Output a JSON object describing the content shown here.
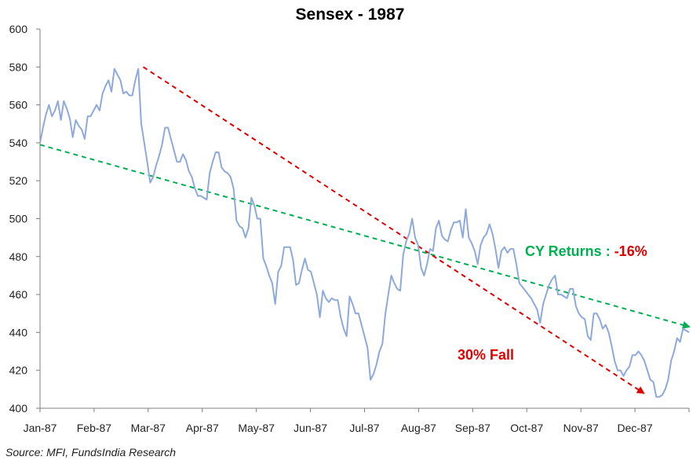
{
  "chart_data": {
    "type": "line",
    "title": "Sensex - 1987",
    "xlabel": "",
    "ylabel": "",
    "ylim": [
      400,
      600
    ],
    "yticks": [
      400,
      420,
      440,
      460,
      480,
      500,
      520,
      540,
      560,
      580,
      600
    ],
    "x_tick_labels": [
      "Jan-87",
      "Feb-87",
      "Mar-87",
      "Apr-87",
      "May-87",
      "Jun-87",
      "Jul-87",
      "Aug-87",
      "Sep-87",
      "Oct-87",
      "Nov-87",
      "Dec-87"
    ],
    "grid": false,
    "line_color": "#8EA9DB",
    "series": [
      {
        "values": [
          540,
          548,
          555,
          560,
          554,
          557,
          562,
          552,
          562,
          558,
          553,
          543,
          552,
          549,
          547,
          542,
          554,
          554,
          557,
          560,
          557,
          566,
          570,
          573,
          567,
          579,
          576,
          573,
          566,
          567,
          565,
          565,
          573,
          579,
          550,
          540,
          530,
          519,
          522,
          528,
          533,
          539,
          548,
          548,
          542,
          536,
          530,
          530,
          534,
          531,
          525,
          522,
          516,
          512,
          512,
          511,
          510,
          524,
          530,
          535,
          535,
          527,
          525,
          524,
          522,
          516,
          499,
          496,
          495,
          490,
          495,
          511,
          507,
          500,
          500,
          479,
          475,
          470,
          466,
          455,
          472,
          475,
          485,
          485,
          485,
          478,
          465,
          466,
          473,
          479,
          473,
          472,
          466,
          460,
          448,
          462,
          458,
          456,
          458,
          457,
          457,
          448,
          442,
          438,
          459,
          455,
          450,
          450,
          444,
          438,
          432,
          415,
          418,
          423,
          430,
          434,
          450,
          460,
          470,
          466,
          463,
          462,
          481,
          488,
          492,
          500,
          490,
          486,
          474,
          470,
          476,
          484,
          483,
          495,
          499,
          491,
          489,
          488,
          494,
          498,
          498,
          499,
          490,
          505,
          490,
          487,
          483,
          476,
          486,
          490,
          492,
          497,
          492,
          484,
          474,
          483,
          485,
          482,
          484,
          484,
          476,
          466,
          464,
          462,
          460,
          458,
          455,
          452,
          445,
          455,
          460,
          465,
          468,
          470,
          460,
          460,
          459,
          458,
          463,
          463,
          454,
          450,
          448,
          447,
          438,
          436,
          450,
          450,
          447,
          442,
          444,
          440,
          433,
          425,
          420,
          420,
          417,
          420,
          422,
          428,
          428,
          430,
          428,
          425,
          420,
          415,
          414,
          406,
          406,
          407,
          410,
          415,
          425,
          430,
          437,
          435,
          442,
          441,
          440
        ]
      }
    ],
    "trendlines": [
      {
        "label": "CY Returns : -16%",
        "color": "#00B050",
        "start": {
          "t": 0,
          "value": 539
        },
        "end": {
          "t": 1,
          "value": 443
        }
      },
      {
        "label": "30% Fall",
        "color": "#E00000",
        "start": {
          "t": 0.159,
          "value": 580
        },
        "end": {
          "t": 0.93,
          "value": 408
        }
      }
    ],
    "annotations": [
      {
        "label": "CY Returns : ",
        "value_text": "-16%",
        "label_color": "#00B050",
        "value_color": "#E00000"
      },
      {
        "label": "30% Fall",
        "label_color": "#E00000"
      }
    ],
    "source": "Source: MFI, FundsIndia Research"
  }
}
